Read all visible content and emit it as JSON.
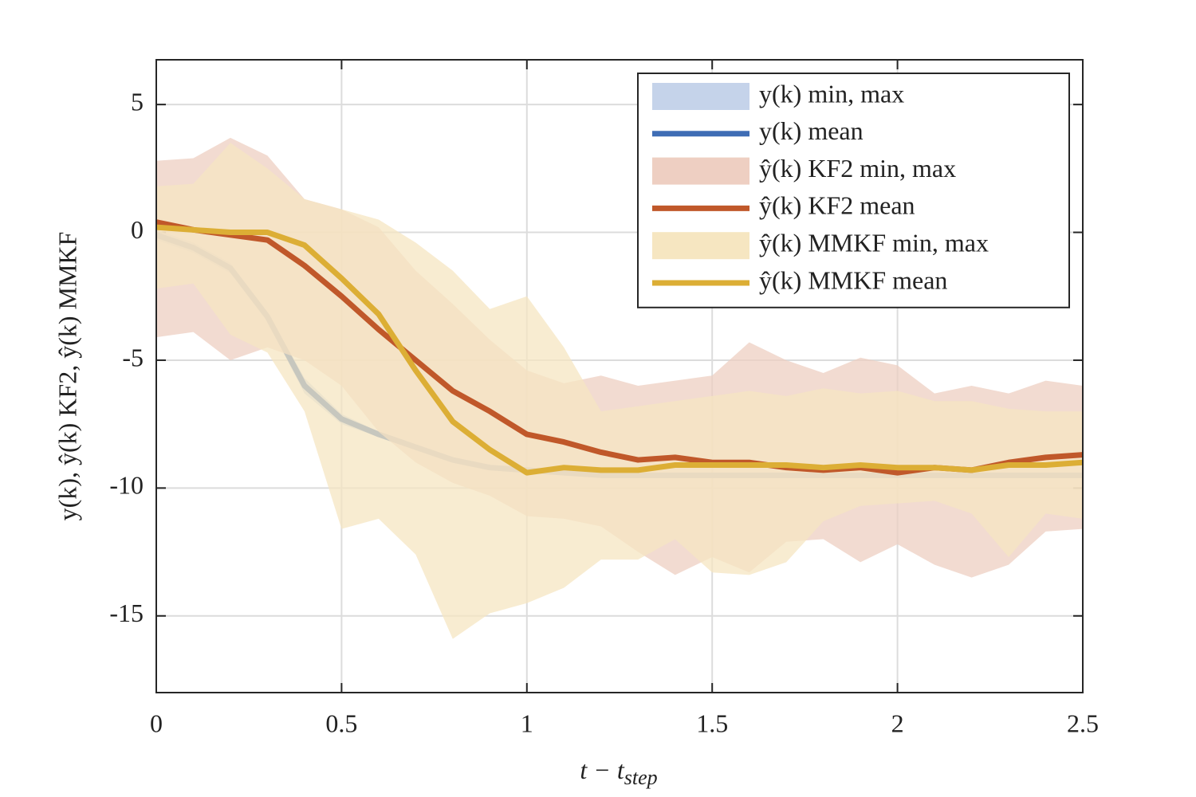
{
  "chart_data": {
    "type": "band-line",
    "xlabel": [
      "t − t",
      "step"
    ],
    "ylabel": "y(k), ŷ(k) KF2, ŷ(k) MMKF",
    "x": [
      0,
      0.1,
      0.2,
      0.3,
      0.4,
      0.5,
      0.6,
      0.7,
      0.8,
      0.9,
      1.0,
      1.1,
      1.2,
      1.3,
      1.4,
      1.5,
      1.6,
      1.7,
      1.8,
      1.9,
      2.0,
      2.1,
      2.2,
      2.3,
      2.4,
      2.5
    ],
    "xlim": [
      0,
      2.5
    ],
    "xticks": [
      0,
      0.5,
      1,
      1.5,
      2,
      2.5
    ],
    "ylim": [
      -18,
      6.75
    ],
    "yticks": [
      -15,
      -10,
      -5,
      0,
      5
    ],
    "grid": true,
    "legend": "upper right",
    "series": [
      {
        "name": "y(k) min, max",
        "kind": "band",
        "color": "#c5d3ea",
        "lower": [
          -0.3,
          -0.8,
          -1.6,
          -3.5,
          -6.3,
          -7.5,
          -8.0,
          -8.5,
          -9.0,
          -9.3,
          -9.4,
          -9.5,
          -9.6,
          -9.6,
          -9.6,
          -9.6,
          -9.6,
          -9.6,
          -9.6,
          -9.6,
          -9.6,
          -9.6,
          -9.6,
          -9.6,
          -9.6,
          -9.6
        ],
        "upper": [
          0.1,
          -0.4,
          -1.2,
          -3.1,
          -5.7,
          -7.1,
          -7.8,
          -8.3,
          -8.8,
          -9.1,
          -9.2,
          -9.3,
          -9.4,
          -9.4,
          -9.4,
          -9.4,
          -9.4,
          -9.4,
          -9.4,
          -9.4,
          -9.4,
          -9.4,
          -9.4,
          -9.4,
          -9.4,
          -9.4
        ]
      },
      {
        "name": "y(k) mean",
        "kind": "line",
        "color": "#3f6db5",
        "values": [
          -0.1,
          -0.6,
          -1.4,
          -3.3,
          -6.0,
          -7.3,
          -7.9,
          -8.4,
          -8.9,
          -9.2,
          -9.3,
          -9.4,
          -9.5,
          -9.5,
          -9.5,
          -9.5,
          -9.5,
          -9.5,
          -9.5,
          -9.5,
          -9.5,
          -9.5,
          -9.5,
          -9.5,
          -9.5,
          -9.5
        ]
      },
      {
        "name": "ŷ(k) KF2 min, max",
        "kind": "band",
        "color": "#eecfc2",
        "lower": [
          -4.1,
          -3.9,
          -5.0,
          -4.5,
          -5.0,
          -6.0,
          -7.8,
          -9.0,
          -9.8,
          -10.3,
          -11.1,
          -11.2,
          -11.5,
          -12.5,
          -13.4,
          -12.7,
          -13.3,
          -12.1,
          -12.0,
          -12.9,
          -12.2,
          -13.0,
          -13.5,
          -13.0,
          -11.7,
          -11.6
        ],
        "upper": [
          2.8,
          2.9,
          3.7,
          3.0,
          1.3,
          0.9,
          0.2,
          -1.5,
          -2.8,
          -4.2,
          -5.4,
          -5.9,
          -5.6,
          -6.0,
          -5.8,
          -5.6,
          -4.3,
          -5.0,
          -5.5,
          -4.9,
          -5.2,
          -6.3,
          -6.0,
          -6.3,
          -5.8,
          -6.0
        ]
      },
      {
        "name": "ŷ(k) KF2 mean",
        "kind": "line",
        "color": "#c0582a",
        "values": [
          0.4,
          0.1,
          -0.1,
          -0.3,
          -1.3,
          -2.5,
          -3.8,
          -5.0,
          -6.2,
          -7.0,
          -7.9,
          -8.2,
          -8.6,
          -8.9,
          -8.8,
          -9.0,
          -9.0,
          -9.2,
          -9.3,
          -9.2,
          -9.4,
          -9.2,
          -9.3,
          -9.0,
          -8.8,
          -8.7
        ]
      },
      {
        "name": "ŷ(k) MMKF min, max",
        "kind": "band",
        "color": "#f6e6c1",
        "lower": [
          -2.2,
          -2.0,
          -4.0,
          -4.7,
          -7.0,
          -11.6,
          -11.2,
          -12.6,
          -15.9,
          -14.9,
          -14.5,
          -13.9,
          -12.8,
          -12.8,
          -12.0,
          -13.3,
          -13.4,
          -12.9,
          -11.3,
          -10.7,
          -10.6,
          -10.5,
          -11.0,
          -12.7,
          -11.0,
          -11.2
        ],
        "upper": [
          1.8,
          1.9,
          3.5,
          2.5,
          1.3,
          0.9,
          0.5,
          -0.4,
          -1.5,
          -3.0,
          -2.5,
          -4.5,
          -7.0,
          -6.8,
          -6.6,
          -6.4,
          -6.2,
          -6.4,
          -6.1,
          -6.3,
          -6.2,
          -6.6,
          -6.6,
          -6.9,
          -7.0,
          -7.0
        ]
      },
      {
        "name": "ŷ(k) MMKF mean",
        "kind": "line",
        "color": "#dcae35",
        "values": [
          0.2,
          0.1,
          0.0,
          0.0,
          -0.5,
          -1.8,
          -3.2,
          -5.4,
          -7.4,
          -8.5,
          -9.4,
          -9.2,
          -9.3,
          -9.3,
          -9.1,
          -9.1,
          -9.1,
          -9.1,
          -9.2,
          -9.1,
          -9.2,
          -9.2,
          -9.3,
          -9.1,
          -9.1,
          -9.0
        ]
      }
    ]
  }
}
